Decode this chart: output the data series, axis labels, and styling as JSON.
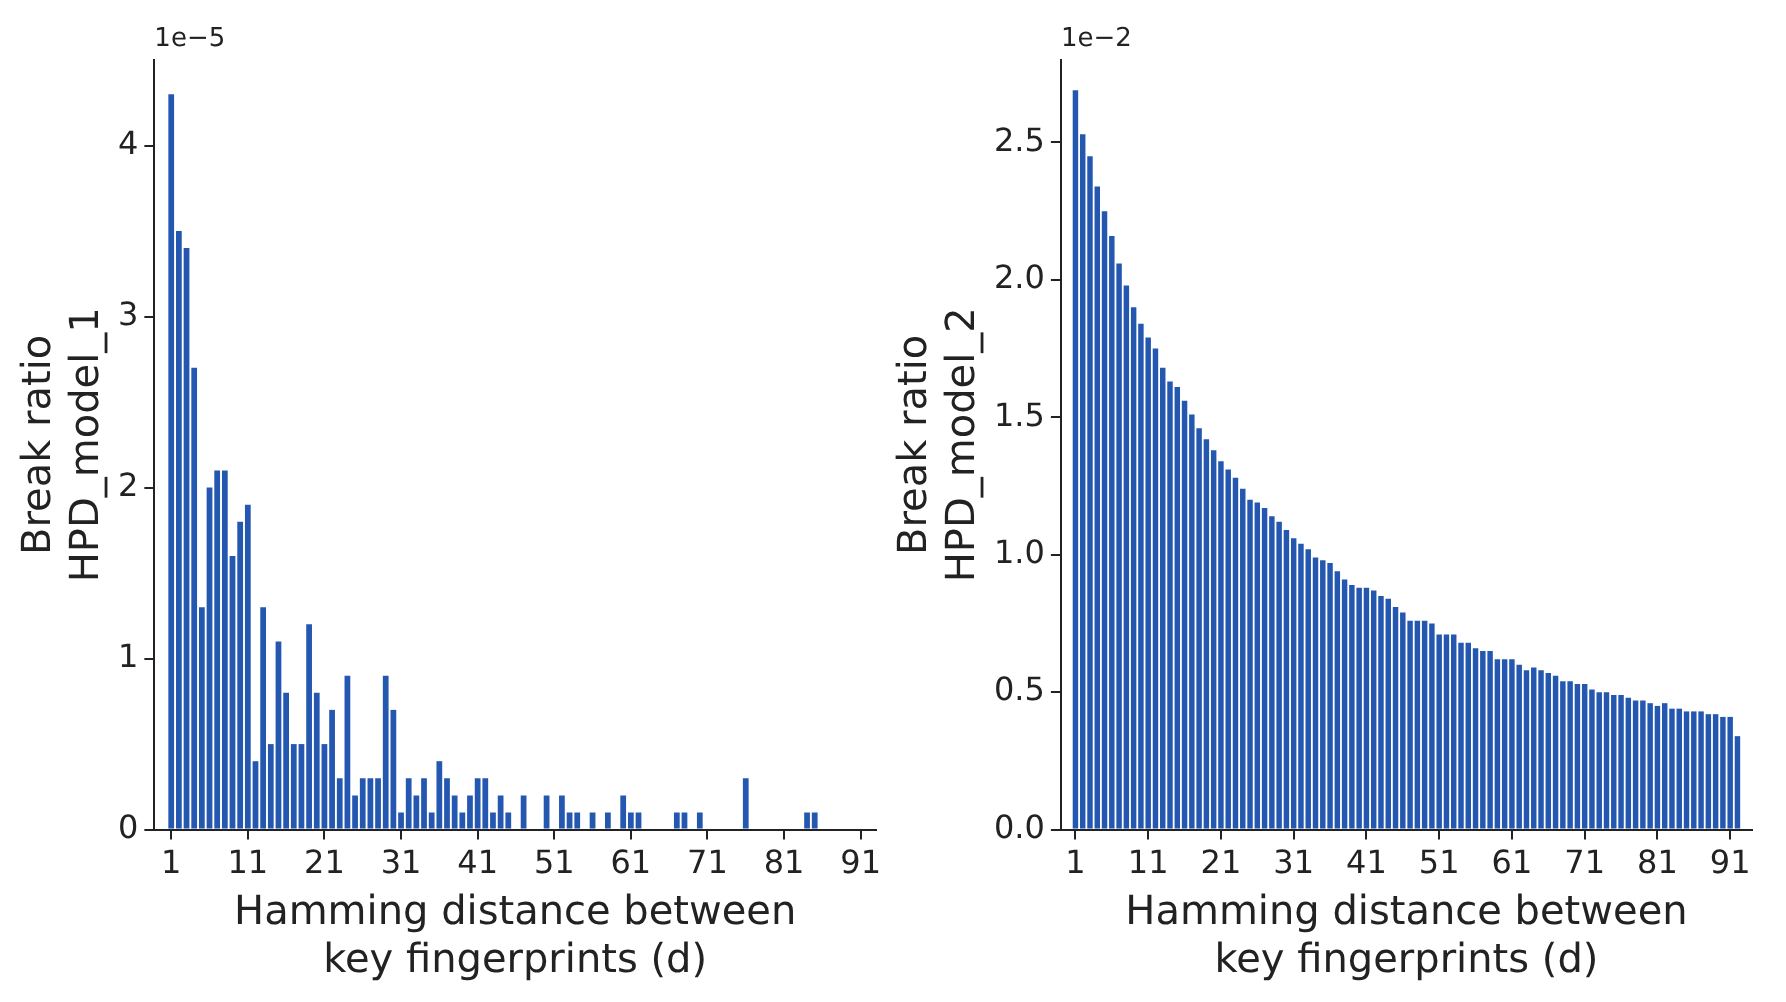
{
  "chart_data": [
    {
      "type": "bar",
      "xlabel": "Hamming distance between\nkey fingerprints (d)",
      "ylabel": "Break ratio\nHPD_model_1",
      "annotations": [
        "1e−5"
      ],
      "color": "#2457b0",
      "x": [
        1,
        2,
        3,
        4,
        5,
        6,
        7,
        8,
        9,
        10,
        11,
        12,
        13,
        14,
        15,
        16,
        17,
        18,
        19,
        20,
        21,
        22,
        23,
        24,
        25,
        26,
        27,
        28,
        29,
        30,
        31,
        32,
        33,
        34,
        35,
        36,
        37,
        38,
        39,
        40,
        41,
        42,
        43,
        44,
        45,
        46,
        47,
        48,
        49,
        50,
        51,
        52,
        53,
        54,
        55,
        56,
        57,
        58,
        59,
        60,
        61,
        62,
        63,
        64,
        65,
        66,
        67,
        68,
        69,
        70,
        71,
        72,
        73,
        74,
        75,
        76,
        77,
        78,
        79,
        80,
        81,
        82,
        83,
        84,
        85,
        86,
        87,
        88,
        89,
        90,
        91,
        92
      ],
      "values": [
        4.3,
        3.5,
        3.4,
        2.7,
        1.3,
        2.0,
        2.1,
        2.1,
        1.6,
        1.8,
        1.9,
        0.4,
        1.3,
        0.5,
        1.1,
        0.8,
        0.5,
        0.5,
        1.2,
        0.8,
        0.5,
        0.7,
        0.3,
        0.9,
        0.2,
        0.3,
        0.3,
        0.3,
        0.9,
        0.7,
        0.1,
        0.3,
        0.2,
        0.3,
        0.1,
        0.4,
        0.3,
        0.2,
        0.1,
        0.2,
        0.3,
        0.3,
        0.1,
        0.2,
        0.1,
        0,
        0.2,
        0,
        0,
        0.2,
        0,
        0.2,
        0.1,
        0.1,
        0,
        0.1,
        0,
        0.1,
        0,
        0.2,
        0.1,
        0.1,
        0,
        0,
        0,
        0,
        0.1,
        0.1,
        0,
        0.1,
        0,
        0,
        0,
        0,
        0,
        0.3,
        0,
        0,
        0,
        0,
        0,
        0,
        0,
        0.1,
        0.1,
        0,
        0,
        0,
        0,
        0,
        0,
        0
      ],
      "xlim": [
        -1.2,
        93
      ],
      "xticks": [
        1,
        11,
        21,
        31,
        41,
        51,
        61,
        71,
        81,
        91
      ],
      "ylim": [
        0,
        4.5
      ],
      "yticks": [
        0,
        1,
        2,
        3,
        4
      ]
    },
    {
      "type": "bar",
      "xlabel": "Hamming distance between\nkey fingerprints (d)",
      "ylabel": "Break ratio\nHPD_model_2",
      "annotations": [
        "1e−2"
      ],
      "color": "#2457b0",
      "x": [
        1,
        2,
        3,
        4,
        5,
        6,
        7,
        8,
        9,
        10,
        11,
        12,
        13,
        14,
        15,
        16,
        17,
        18,
        19,
        20,
        21,
        22,
        23,
        24,
        25,
        26,
        27,
        28,
        29,
        30,
        31,
        32,
        33,
        34,
        35,
        36,
        37,
        38,
        39,
        40,
        41,
        42,
        43,
        44,
        45,
        46,
        47,
        48,
        49,
        50,
        51,
        52,
        53,
        54,
        55,
        56,
        57,
        58,
        59,
        60,
        61,
        62,
        63,
        64,
        65,
        66,
        67,
        68,
        69,
        70,
        71,
        72,
        73,
        74,
        75,
        76,
        77,
        78,
        79,
        80,
        81,
        82,
        83,
        84,
        85,
        86,
        87,
        88,
        89,
        90,
        91,
        92
      ],
      "values": [
        2.69,
        2.53,
        2.45,
        2.34,
        2.25,
        2.16,
        2.06,
        1.98,
        1.9,
        1.84,
        1.79,
        1.75,
        1.68,
        1.63,
        1.61,
        1.56,
        1.51,
        1.46,
        1.42,
        1.38,
        1.34,
        1.31,
        1.28,
        1.24,
        1.2,
        1.19,
        1.17,
        1.14,
        1.12,
        1.09,
        1.06,
        1.04,
        1.02,
        0.99,
        0.98,
        0.97,
        0.94,
        0.91,
        0.89,
        0.88,
        0.88,
        0.87,
        0.85,
        0.84,
        0.81,
        0.79,
        0.76,
        0.76,
        0.76,
        0.75,
        0.71,
        0.71,
        0.71,
        0.68,
        0.68,
        0.66,
        0.65,
        0.65,
        0.62,
        0.62,
        0.62,
        0.6,
        0.58,
        0.59,
        0.58,
        0.57,
        0.56,
        0.54,
        0.54,
        0.53,
        0.53,
        0.51,
        0.5,
        0.5,
        0.49,
        0.49,
        0.48,
        0.47,
        0.47,
        0.46,
        0.45,
        0.46,
        0.44,
        0.44,
        0.43,
        0.43,
        0.43,
        0.42,
        0.42,
        0.41,
        0.41,
        0.34
      ],
      "xlim": [
        -1,
        94
      ],
      "xticks": [
        1,
        11,
        21,
        31,
        41,
        51,
        61,
        71,
        81,
        91
      ],
      "ylim": [
        0,
        2.8
      ],
      "yticks": [
        {
          "value": 0,
          "label": "0.0"
        },
        {
          "value": 0.5,
          "label": "0.5"
        },
        {
          "value": 1,
          "label": "1.0"
        },
        {
          "value": 1.5,
          "label": "1.5"
        },
        {
          "value": 2,
          "label": "2.0"
        },
        {
          "value": 2.5,
          "label": "2.5"
        }
      ]
    }
  ]
}
